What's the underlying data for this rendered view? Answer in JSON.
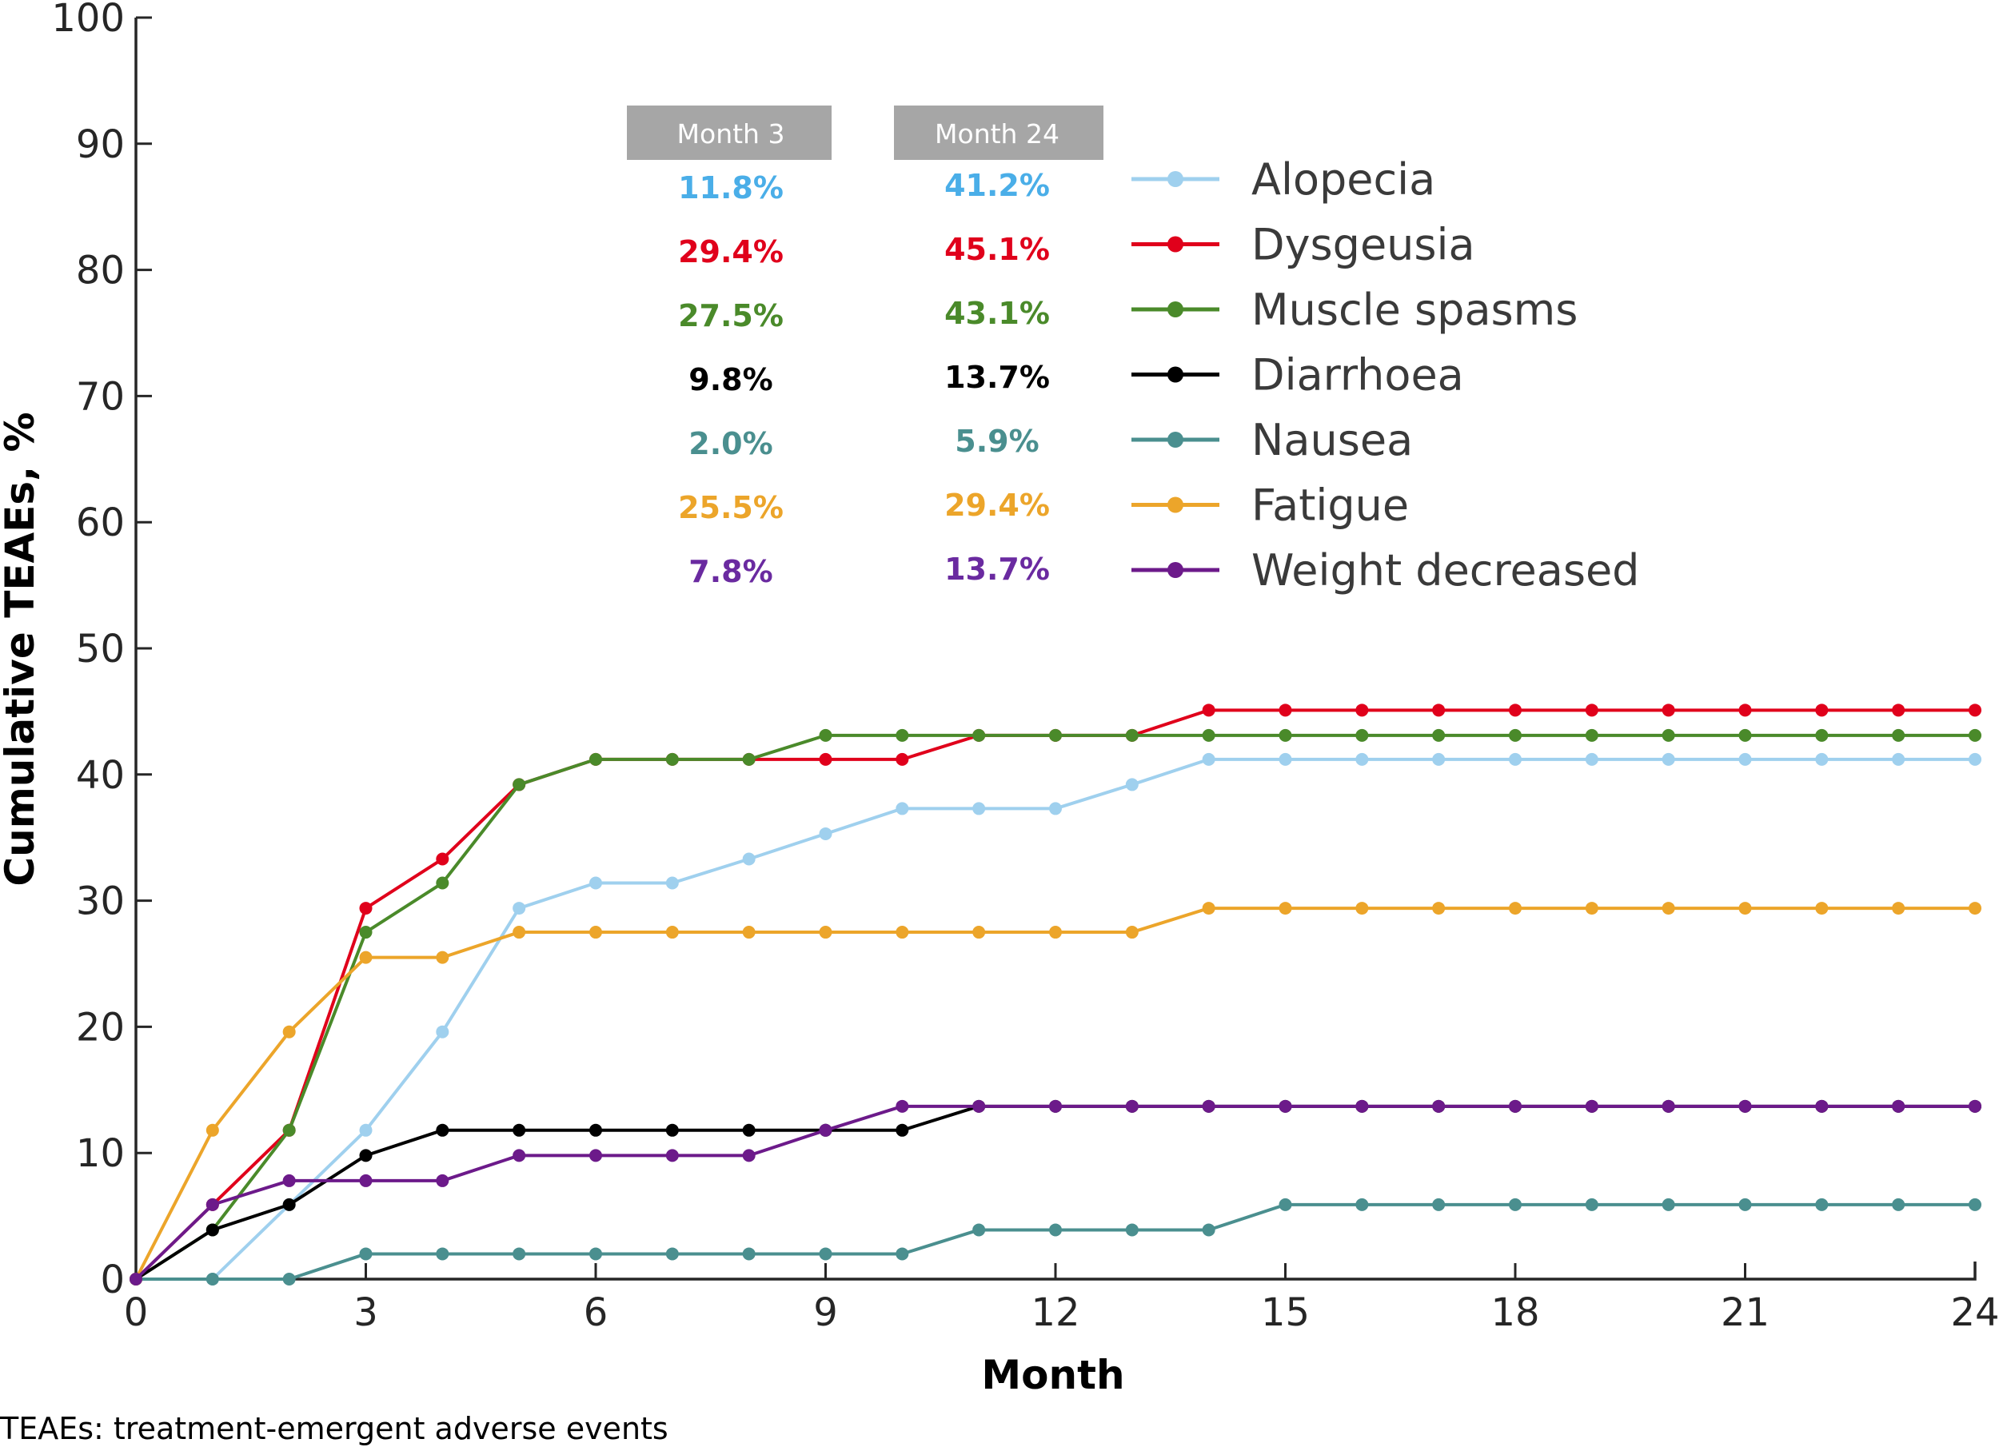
{
  "chart_data": {
    "type": "line",
    "title": "",
    "xlabel": "Month",
    "ylabel": "Cumulative TEAEs, %",
    "xlim": [
      0,
      24
    ],
    "ylim": [
      0,
      100
    ],
    "xticks": [
      0,
      3,
      6,
      9,
      12,
      15,
      18,
      21,
      24
    ],
    "yticks": [
      0,
      10,
      20,
      30,
      40,
      50,
      60,
      70,
      80,
      90,
      100
    ],
    "grid": false,
    "legend_position": "top-right",
    "x": [
      0,
      1,
      2,
      3,
      4,
      5,
      6,
      7,
      8,
      9,
      10,
      11,
      12,
      13,
      14,
      15,
      16,
      17,
      18,
      19,
      20,
      21,
      22,
      23,
      24
    ],
    "series": [
      {
        "name": "Alopecia",
        "color": "#9fd0ee",
        "values": [
          0,
          0,
          5.9,
          11.8,
          19.6,
          29.4,
          31.4,
          31.4,
          33.3,
          35.3,
          37.3,
          37.3,
          37.3,
          39.2,
          41.2,
          41.2,
          41.2,
          41.2,
          41.2,
          41.2,
          41.2,
          41.2,
          41.2,
          41.2,
          41.2
        ]
      },
      {
        "name": "Dysgeusia",
        "color": "#e0001b",
        "values": [
          0,
          5.9,
          11.8,
          29.4,
          33.3,
          39.2,
          41.2,
          41.2,
          41.2,
          41.2,
          41.2,
          43.1,
          43.1,
          43.1,
          45.1,
          45.1,
          45.1,
          45.1,
          45.1,
          45.1,
          45.1,
          45.1,
          45.1,
          45.1,
          45.1
        ]
      },
      {
        "name": "Muscle spasms",
        "color": "#4a8a2a",
        "values": [
          0,
          3.9,
          11.8,
          27.5,
          31.4,
          39.2,
          41.2,
          41.2,
          41.2,
          43.1,
          43.1,
          43.1,
          43.1,
          43.1,
          43.1,
          43.1,
          43.1,
          43.1,
          43.1,
          43.1,
          43.1,
          43.1,
          43.1,
          43.1,
          43.1
        ]
      },
      {
        "name": "Diarrhoea",
        "color": "#000000",
        "values": [
          0,
          3.9,
          5.9,
          9.8,
          11.8,
          11.8,
          11.8,
          11.8,
          11.8,
          11.8,
          11.8,
          13.7,
          13.7,
          13.7,
          13.7,
          13.7,
          13.7,
          13.7,
          13.7,
          13.7,
          13.7,
          13.7,
          13.7,
          13.7,
          13.7
        ]
      },
      {
        "name": "Nausea",
        "color": "#4a8f8f",
        "values": [
          0,
          0,
          0,
          2.0,
          2.0,
          2.0,
          2.0,
          2.0,
          2.0,
          2.0,
          2.0,
          3.9,
          3.9,
          3.9,
          3.9,
          5.9,
          5.9,
          5.9,
          5.9,
          5.9,
          5.9,
          5.9,
          5.9,
          5.9,
          5.9
        ]
      },
      {
        "name": "Fatigue",
        "color": "#eca52a",
        "values": [
          0,
          11.8,
          19.6,
          25.5,
          25.5,
          27.5,
          27.5,
          27.5,
          27.5,
          27.5,
          27.5,
          27.5,
          27.5,
          27.5,
          29.4,
          29.4,
          29.4,
          29.4,
          29.4,
          29.4,
          29.4,
          29.4,
          29.4,
          29.4,
          29.4
        ]
      },
      {
        "name": "Weight decreased",
        "color": "#6c1a8a",
        "values": [
          0,
          5.9,
          7.8,
          7.8,
          7.8,
          9.8,
          9.8,
          9.8,
          9.8,
          11.8,
          13.7,
          13.7,
          13.7,
          13.7,
          13.7,
          13.7,
          13.7,
          13.7,
          13.7,
          13.7,
          13.7,
          13.7,
          13.7,
          13.7,
          13.7
        ]
      }
    ],
    "annotation_table": {
      "headers": [
        "Month 3",
        "Month 24"
      ],
      "rows": [
        {
          "month3": "11.8%",
          "month24": "41.2%",
          "color": "#4aaee8"
        },
        {
          "month3": "29.4%",
          "month24": "45.1%",
          "color": "#e0001b"
        },
        {
          "month3": "27.5%",
          "month24": "43.1%",
          "color": "#4a8a2a"
        },
        {
          "month3": "9.8%",
          "month24": "13.7%",
          "color": "#000000"
        },
        {
          "month3": "2.0%",
          "month24": "5.9%",
          "color": "#4a8f8f"
        },
        {
          "month3": "25.5%",
          "month24": "29.4%",
          "color": "#eca52a"
        },
        {
          "month3": "7.8%",
          "month24": "13.7%",
          "color": "#6a2aa0"
        }
      ]
    }
  },
  "footnote": "TEAEs: treatment-emergent adverse events"
}
